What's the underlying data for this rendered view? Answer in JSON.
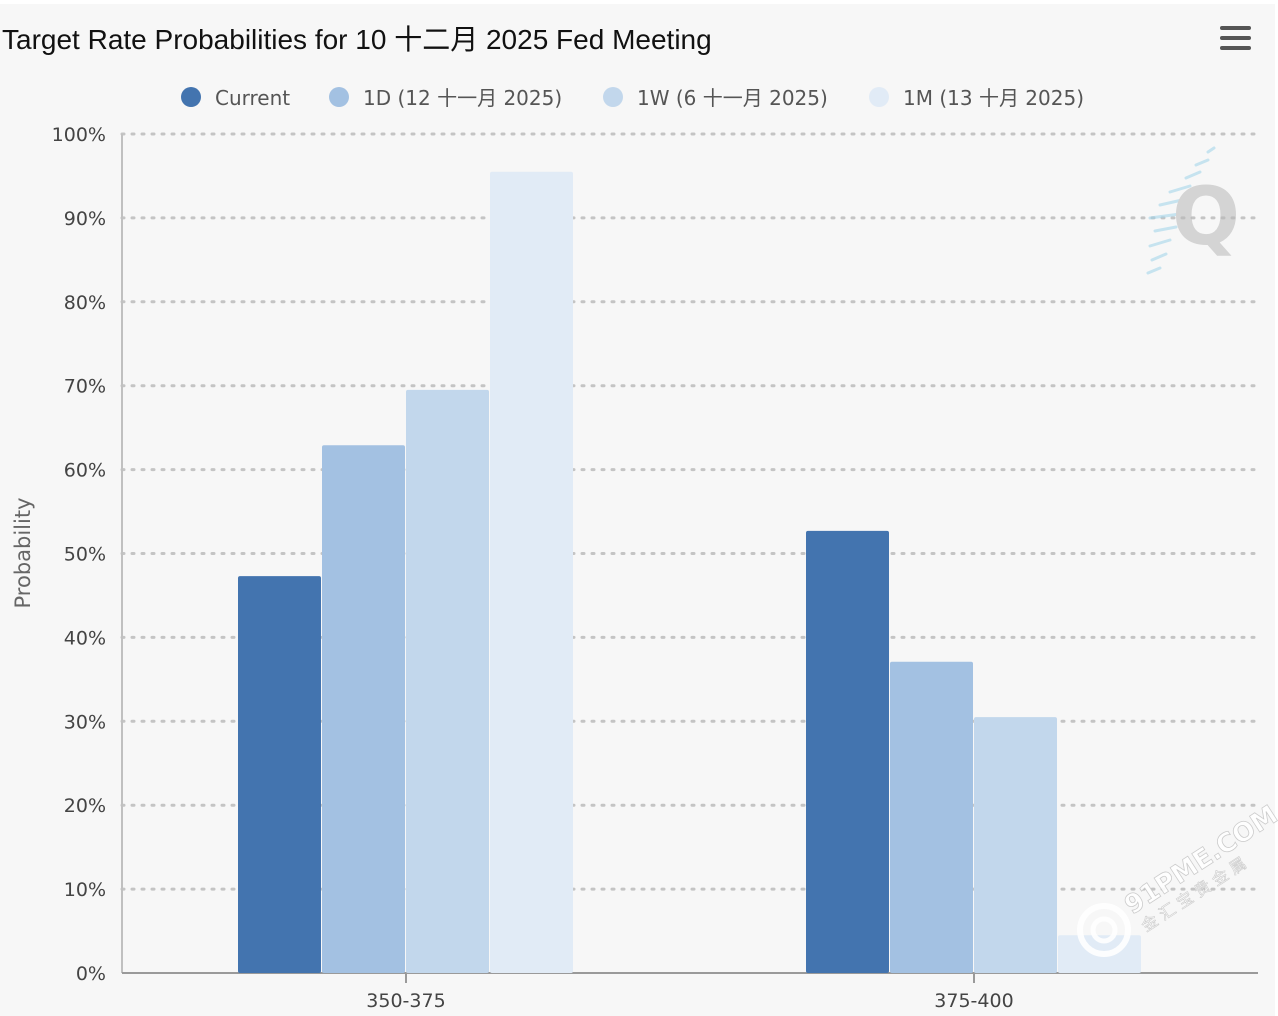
{
  "chart_data": {
    "type": "bar",
    "title": "Target Rate Probabilities for 10 十二月 2025 Fed Meeting",
    "xlabel": "",
    "ylabel": "Probability",
    "ylim": [
      0,
      100
    ],
    "yticks": [
      "0%",
      "10%",
      "20%",
      "30%",
      "40%",
      "50%",
      "60%",
      "70%",
      "80%",
      "90%",
      "100%"
    ],
    "grid": true,
    "legend_position": "top-center",
    "categories": [
      "350-375",
      "375-400"
    ],
    "series": [
      {
        "name": "Current",
        "values": [
          47.3,
          52.7
        ],
        "color": "#4374af"
      },
      {
        "name": "1D (12 十一月 2025)",
        "values": [
          62.9,
          37.1
        ],
        "color": "#a3c1e2"
      },
      {
        "name": "1W (6 十一月 2025)",
        "values": [
          69.5,
          30.5
        ],
        "color": "#c2d7ec"
      },
      {
        "name": "1M (13 十月 2025)",
        "values": [
          95.5,
          4.5
        ],
        "color": "#e1ebf6"
      }
    ]
  },
  "watermark": {
    "site": "91PME.COM",
    "subtitle": "金汇宝贵金属"
  },
  "menu": {
    "icon": "hamburger-menu-icon"
  }
}
